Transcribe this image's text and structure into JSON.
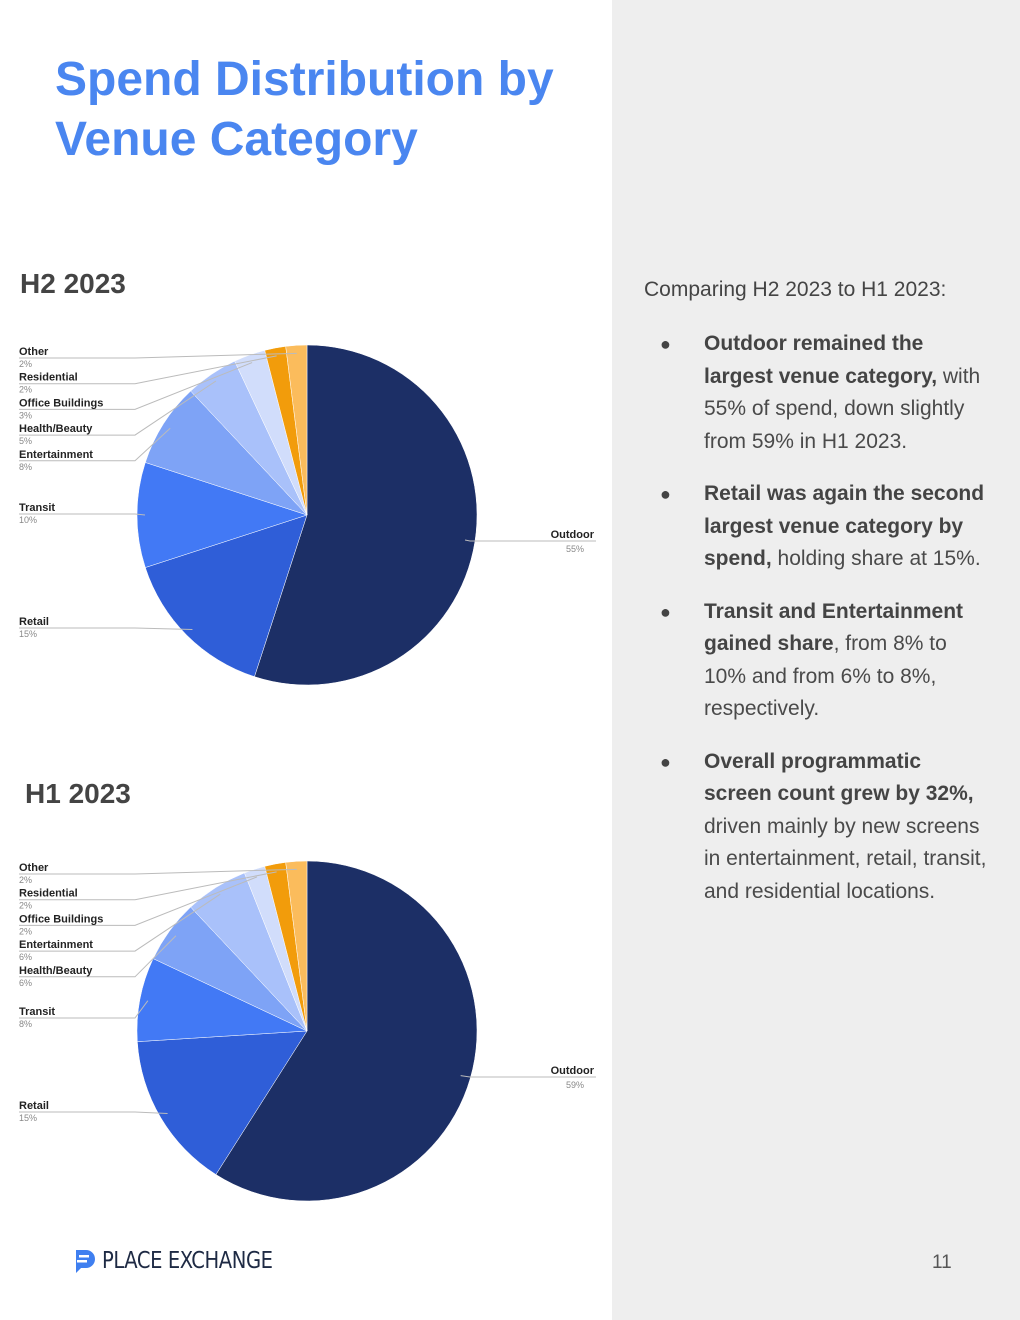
{
  "page": {
    "title": "Spend Distribution by Venue Category",
    "intro": "Comparing H2 2023 to H1 2023:",
    "bullets": [
      {
        "bold": "Outdoor remained the largest venue category,",
        "text": " with 55% of spend, down slightly from 59% in H1 2023."
      },
      {
        "bold": "Retail was again the second largest venue category by spend,",
        "text": " holding share at 15%."
      },
      {
        "bold": "Transit and Entertainment gained share",
        "text": ", from 8% to 10% and from 6% to 8%, respectively."
      },
      {
        "bold": "Overall programmatic screen count grew by 32%,",
        "text": " driven mainly by new screens in entertainment, retail, transit, and residential locations."
      }
    ],
    "bullet_glyph": "●",
    "logo_text": "PLACE EXCHANGE",
    "page_number": "11"
  },
  "colors": {
    "title": "#4a86f0",
    "logo_mark": "#3f7ff0"
  },
  "chart_data": [
    {
      "type": "pie",
      "title": "H2 2023",
      "slices": [
        {
          "label": "Outdoor",
          "value": 55,
          "pct_label": "55%",
          "color": "#1c2f66"
        },
        {
          "label": "Retail",
          "value": 15,
          "pct_label": "15%",
          "color": "#2f5ed8"
        },
        {
          "label": "Transit",
          "value": 10,
          "pct_label": "10%",
          "color": "#4279f5"
        },
        {
          "label": "Entertainment",
          "value": 8,
          "pct_label": "8%",
          "color": "#7ea3f6"
        },
        {
          "label": "Health/Beauty",
          "value": 5,
          "pct_label": "5%",
          "color": "#a9c1fa"
        },
        {
          "label": "Office Buildings",
          "value": 3,
          "pct_label": "3%",
          "color": "#d1ddfb"
        },
        {
          "label": "Residential",
          "value": 2,
          "pct_label": "2%",
          "color": "#f29c0b"
        },
        {
          "label": "Other",
          "value": 2,
          "pct_label": "2%",
          "color": "#fbbc5c"
        }
      ]
    },
    {
      "type": "pie",
      "title": "H1 2023",
      "slices": [
        {
          "label": "Outdoor",
          "value": 59,
          "pct_label": "59%",
          "color": "#1c2f66"
        },
        {
          "label": "Retail",
          "value": 15,
          "pct_label": "15%",
          "color": "#2f5ed8"
        },
        {
          "label": "Transit",
          "value": 8,
          "pct_label": "8%",
          "color": "#4279f5"
        },
        {
          "label": "Health/Beauty",
          "value": 6,
          "pct_label": "6%",
          "color": "#7ea3f6"
        },
        {
          "label": "Entertainment",
          "value": 6,
          "pct_label": "6%",
          "color": "#a9c1fa"
        },
        {
          "label": "Office Buildings",
          "value": 2,
          "pct_label": "2%",
          "color": "#d1ddfb"
        },
        {
          "label": "Residential",
          "value": 2,
          "pct_label": "2%",
          "color": "#f29c0b"
        },
        {
          "label": "Other",
          "value": 2,
          "pct_label": "2%",
          "color": "#fbbc5c"
        }
      ]
    }
  ]
}
